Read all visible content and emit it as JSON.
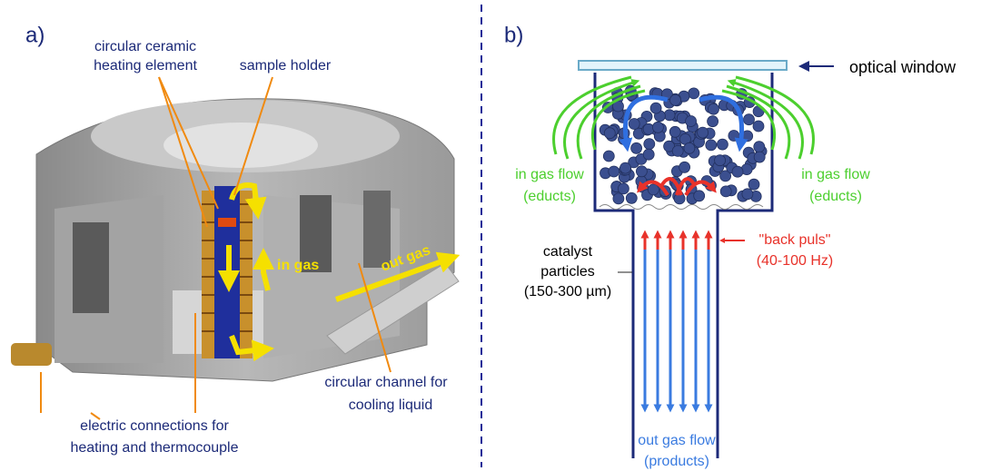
{
  "panel_a": {
    "label": "a)",
    "heating_element": [
      "circular ceramic",
      "heating element"
    ],
    "sample_holder": "sample holder",
    "in_gas": "in gas",
    "out_gas": "out gas",
    "cooling_channel": [
      "circular channel for",
      "cooling liquid"
    ],
    "electric_connections": [
      "electric connections for",
      "heating and thermocouple"
    ]
  },
  "panel_b": {
    "label": "b)",
    "optical_window": "optical window",
    "in_gas_left": [
      "in gas flow",
      "(educts)"
    ],
    "in_gas_right": [
      "in gas flow",
      "(educts)"
    ],
    "catalyst": [
      "catalyst",
      "particles",
      "(150-300 µm)"
    ],
    "back_puls": [
      "\"back puls\"",
      "(40-100 Hz)"
    ],
    "out_gas": [
      "out gas flow",
      "(products)"
    ]
  }
}
